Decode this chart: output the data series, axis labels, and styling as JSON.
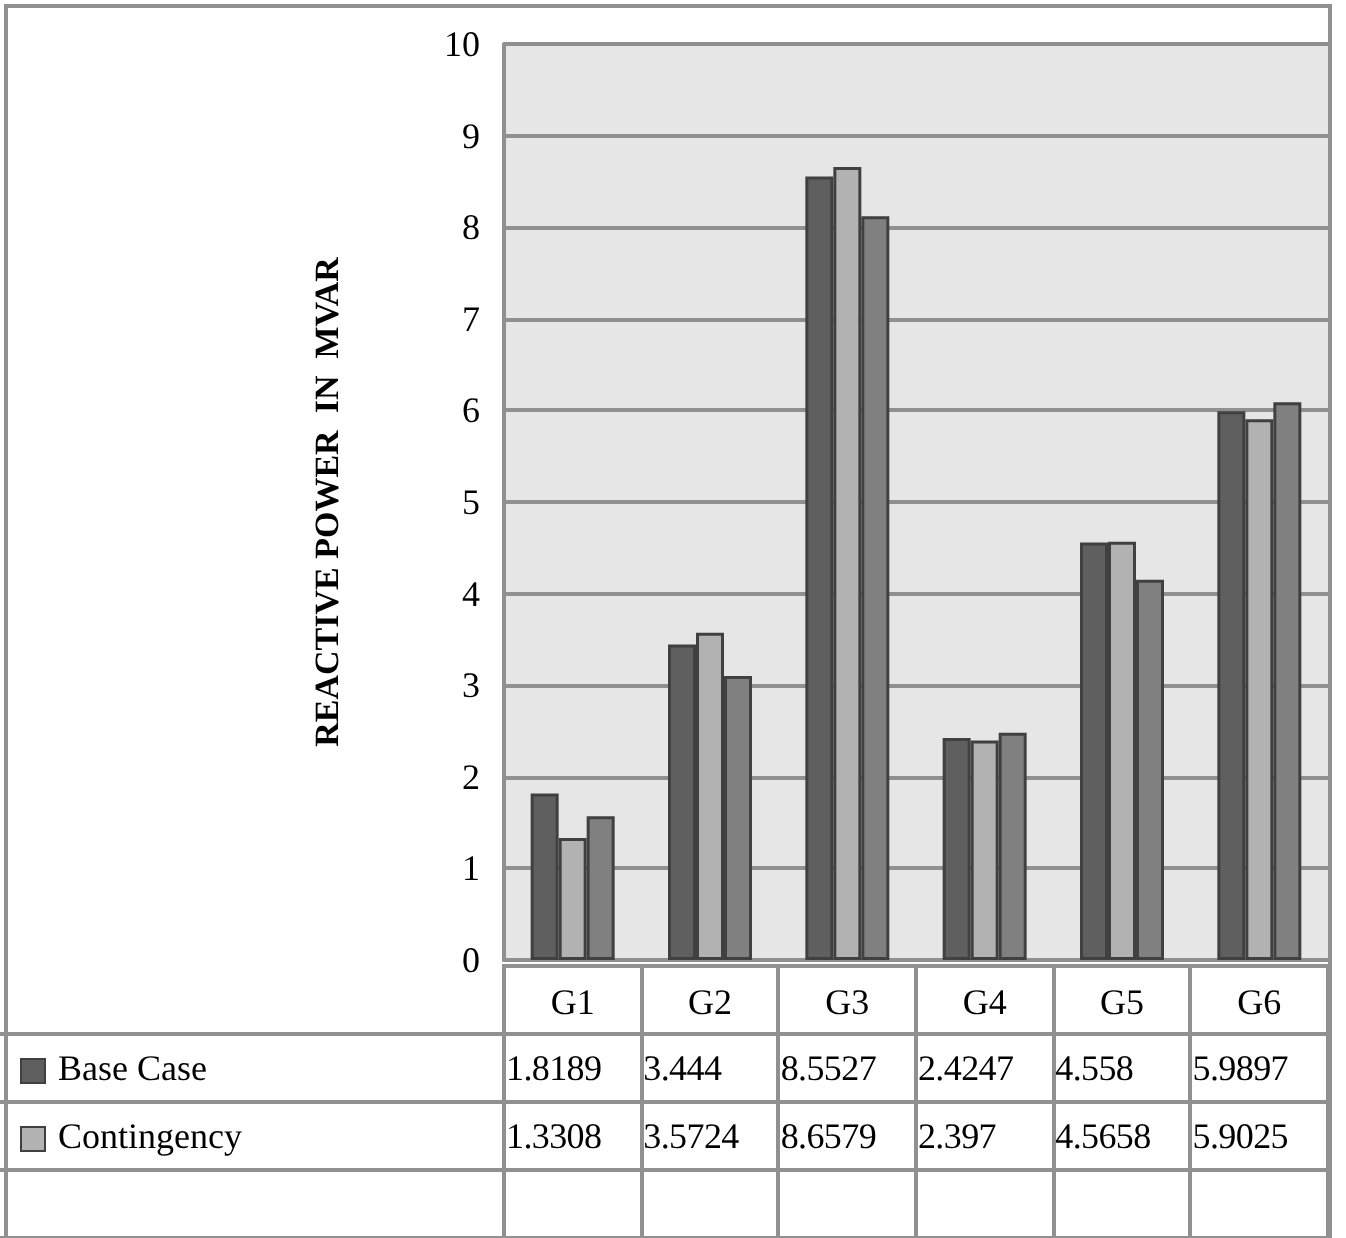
{
  "chart_data": {
    "type": "bar",
    "ylabel": "REACTIVE POWER  IN  MVAR",
    "categories": [
      "G1",
      "G2",
      "G3",
      "G4",
      "G5",
      "G6"
    ],
    "series": [
      {
        "name": "Base Case",
        "color": "#5f5f5f",
        "values": [
          1.8189,
          3.444,
          8.5527,
          2.4247,
          4.558,
          5.9897
        ],
        "value_labels": [
          "1.8189",
          "3.444",
          "8.5527",
          "2.4247",
          "4.558",
          "5.9897"
        ]
      },
      {
        "name": "Contingency",
        "color": "#b2b2b2",
        "values": [
          1.3308,
          3.5724,
          8.6579,
          2.397,
          4.5658,
          5.9025
        ],
        "value_labels": [
          "1.3308",
          "3.5724",
          "8.6579",
          "2.397",
          "4.5658",
          "5.9025"
        ]
      },
      {
        "color": "#808080",
        "values": [
          1.57,
          3.1,
          8.12,
          2.48,
          4.15,
          6.09
        ]
      }
    ],
    "ylim": [
      0,
      10
    ],
    "yticks": [
      0,
      1,
      2,
      3,
      4,
      5,
      6,
      7,
      8,
      9,
      10
    ],
    "grid": "y",
    "legend": "bottom"
  }
}
